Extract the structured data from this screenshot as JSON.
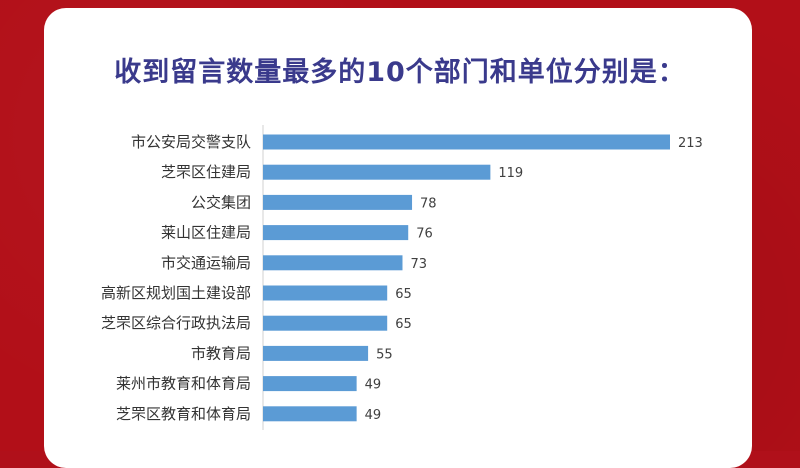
{
  "title": "收到留言数量最多的10个部门和单位分别是：",
  "colors": {
    "background": "#b20f18",
    "card": "#ffffff",
    "bar": "#5b9bd5",
    "title": "#3a3a8c"
  },
  "chart_data": {
    "type": "bar",
    "orientation": "horizontal",
    "categories": [
      "市公安局交警支队",
      "芝罘区住建局",
      "公交集团",
      "莱山区住建局",
      "市交通运输局",
      "高新区规划国土建设部",
      "芝罘区综合行政执法局",
      "市教育局",
      "莱州市教育和体育局",
      "芝罘区教育和体育局"
    ],
    "values": [
      213,
      119,
      78,
      76,
      73,
      65,
      65,
      55,
      49,
      49
    ],
    "title": "收到留言数量最多的10个部门和单位分别是：",
    "xlim": [
      0,
      225
    ],
    "grid": false,
    "data_labels": true
  }
}
